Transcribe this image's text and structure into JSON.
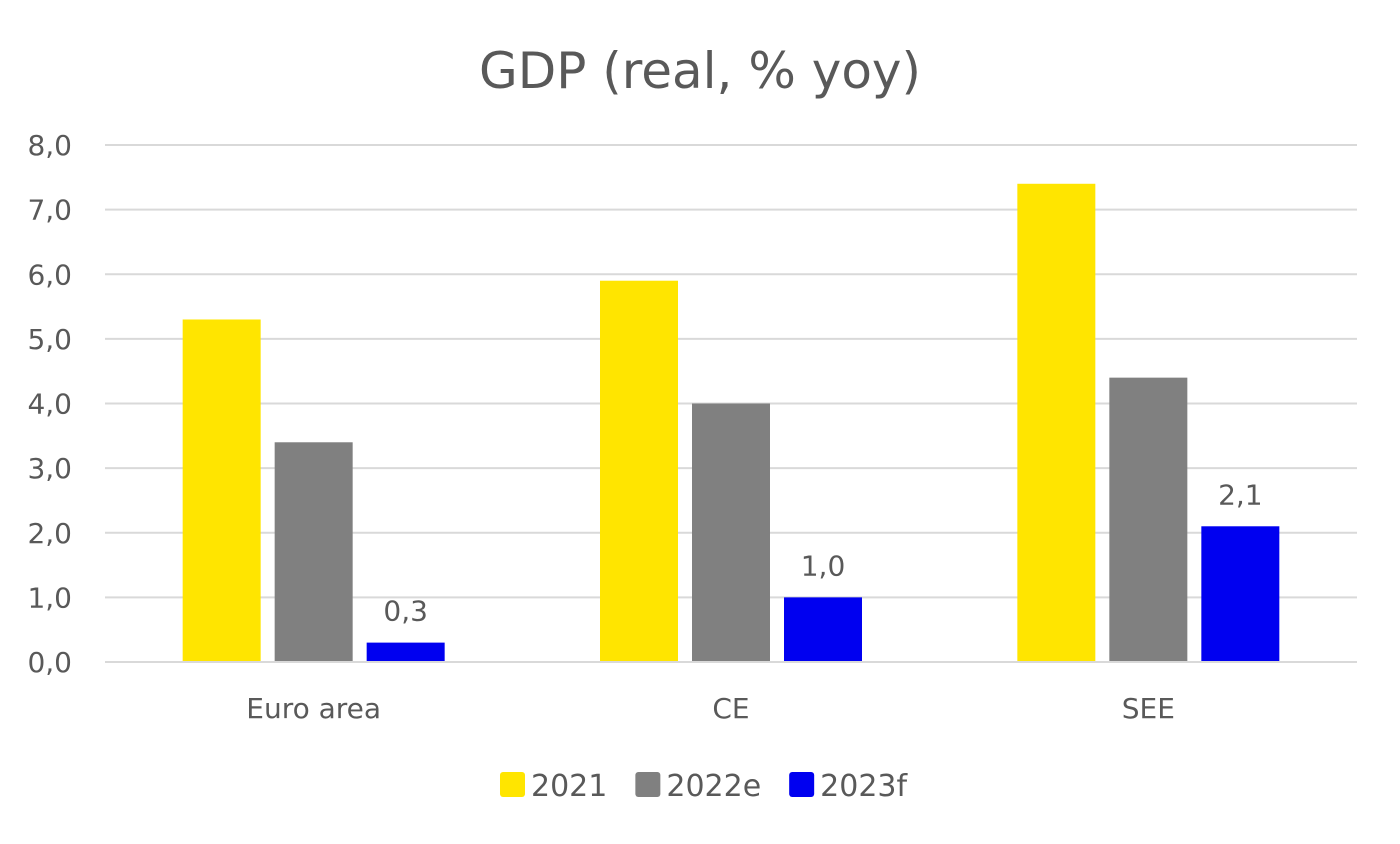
{
  "chart_data": {
    "type": "bar",
    "title": "GDP (real, % yoy)",
    "xlabel": "",
    "ylabel": "",
    "categories": [
      "Euro area",
      "CE",
      "SEE"
    ],
    "series": [
      {
        "name": "2021",
        "values": [
          5.3,
          5.9,
          7.4
        ],
        "color": "#FFE500",
        "labels": [
          null,
          null,
          null
        ]
      },
      {
        "name": "2022e",
        "values": [
          3.4,
          4.0,
          4.4
        ],
        "color": "#808080",
        "labels": [
          null,
          null,
          null
        ]
      },
      {
        "name": "2023f",
        "values": [
          0.3,
          1.0,
          2.1
        ],
        "color": "#0000F0",
        "labels": [
          "0,3",
          "1,0",
          "2,1"
        ]
      }
    ],
    "ylim": [
      0,
      8
    ],
    "yticks": [
      "0,0",
      "1,0",
      "2,0",
      "3,0",
      "4,0",
      "5,0",
      "6,0",
      "7,0",
      "8,0"
    ],
    "grid": true,
    "legend": "bottom"
  }
}
